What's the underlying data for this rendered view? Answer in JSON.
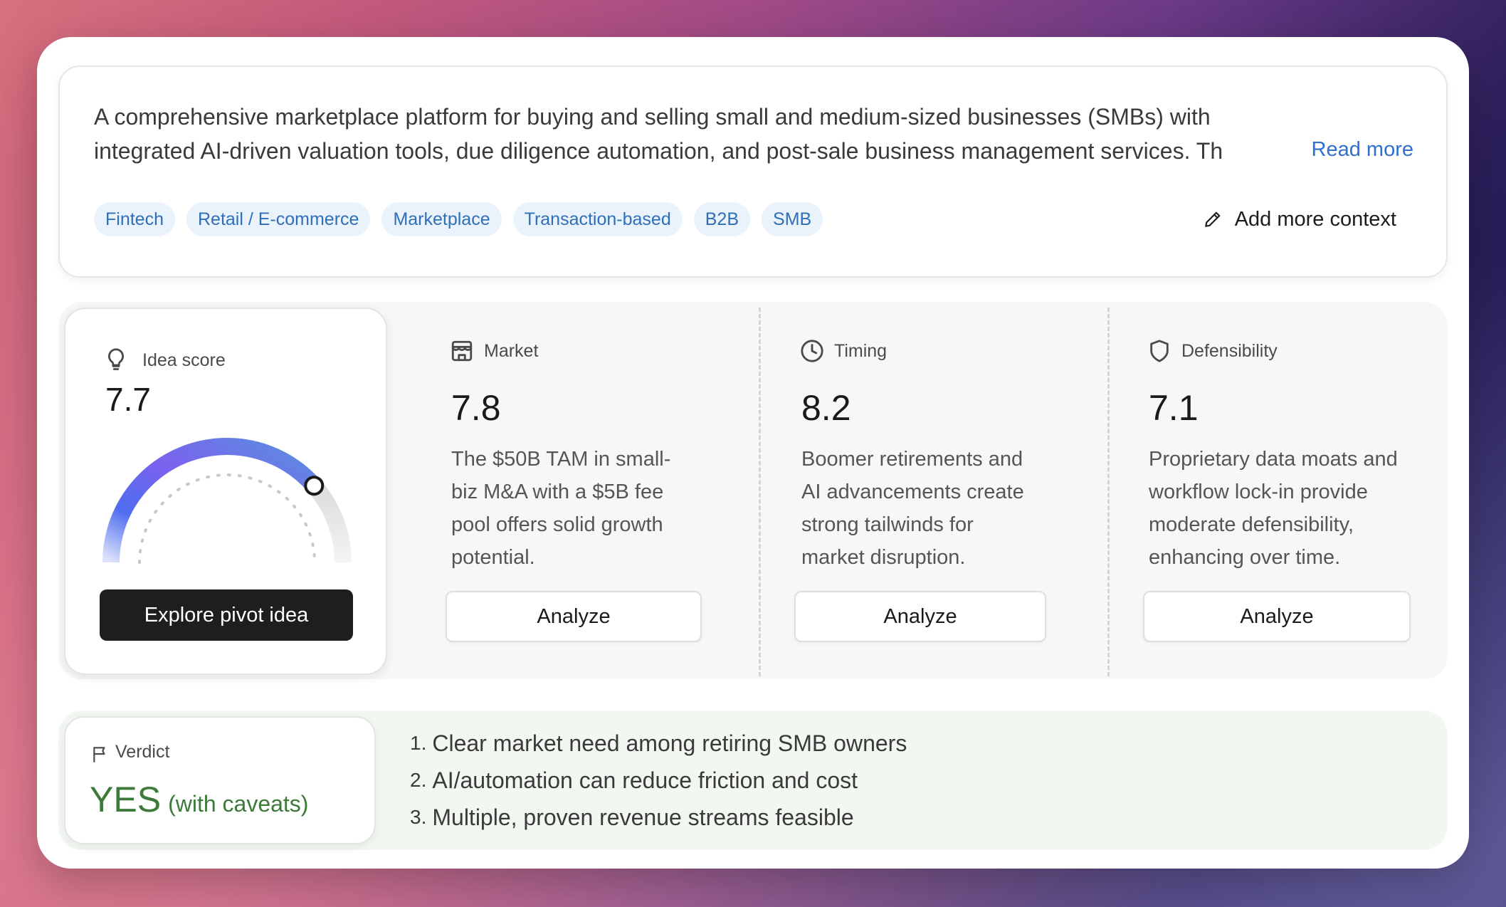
{
  "description": {
    "line1": "A comprehensive marketplace platform for buying and selling small and medium-sized businesses (SMBs) with",
    "line2": "integrated AI-driven valuation tools, due diligence automation, and post-sale business management services. Th",
    "read_more": "Read more"
  },
  "tags": [
    "Fintech",
    "Retail / E-commerce",
    "Marketplace",
    "Transaction-based",
    "B2B",
    "SMB"
  ],
  "add_context_label": "Add more context",
  "idea_score": {
    "label": "Idea score",
    "value": "7.7",
    "gauge_fraction": 0.77,
    "pivot_button": "Explore pivot idea"
  },
  "metrics": [
    {
      "label": "Market",
      "icon": "store-icon",
      "value": "7.8",
      "lines": [
        "The $50B TAM in small-",
        "biz M&A with a $5B fee",
        "pool offers solid growth",
        "potential."
      ],
      "button": "Analyze"
    },
    {
      "label": "Timing",
      "icon": "clock-icon",
      "value": "8.2",
      "lines": [
        "Boomer retirements and",
        "AI advancements create",
        "strong tailwinds for",
        "market disruption."
      ],
      "button": "Analyze"
    },
    {
      "label": "Defensibility",
      "icon": "shield-icon",
      "value": "7.1",
      "lines": [
        "Proprietary data moats and",
        "workflow lock-in provide",
        "moderate defensibility,",
        "enhancing over time."
      ],
      "button": "Analyze"
    }
  ],
  "verdict": {
    "label": "Verdict",
    "answer": "YES",
    "qualifier": "(with caveats)",
    "reasons": [
      {
        "num": "1.",
        "text": "Clear market need among retiring SMB owners"
      },
      {
        "num": "2.",
        "text": "AI/automation can reduce friction and cost"
      },
      {
        "num": "3.",
        "text": "Multiple, proven revenue streams feasible"
      }
    ]
  },
  "colors": {
    "link": "#2f6fd0",
    "tag_bg": "#eaf3fc",
    "tag_text": "#2f6fb8",
    "verdict_green": "#3d7a3a",
    "gauge_start": "#4f6df0",
    "gauge_mid": "#7b61ee",
    "gauge_end": "#5b8fe0"
  }
}
